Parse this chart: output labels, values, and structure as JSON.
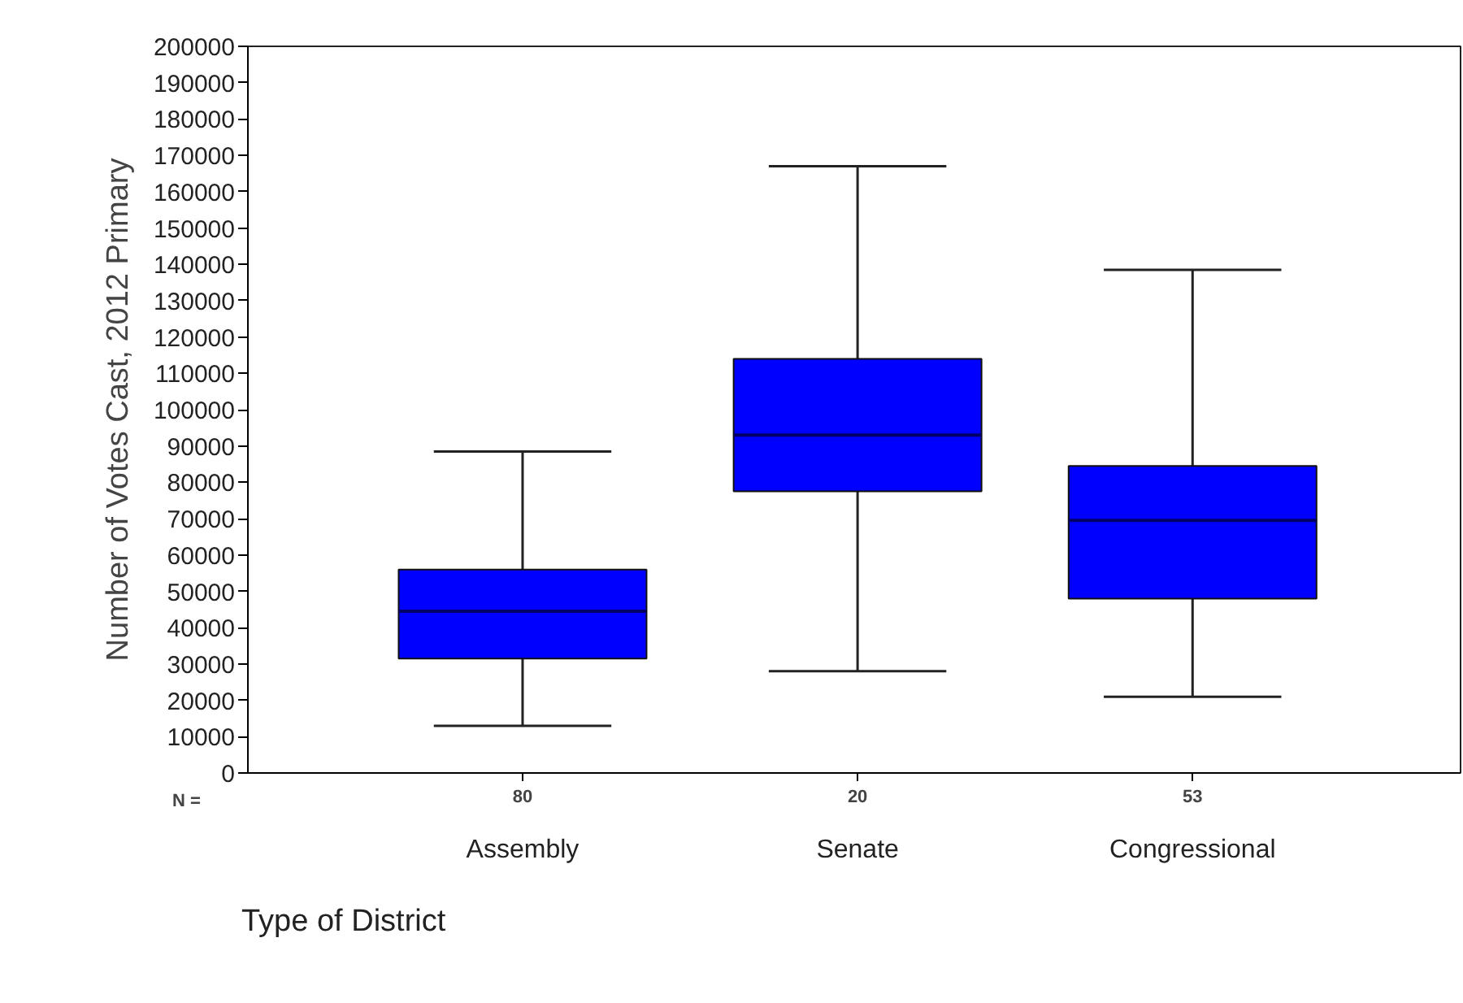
{
  "chart_data": {
    "type": "box",
    "ylabel": "Number of Votes Cast, 2012 Primary",
    "xlabel": "Type of District",
    "categories": [
      "Assembly",
      "Senate",
      "Congressional"
    ],
    "series": [
      {
        "color": "#0000ff",
        "boxes": [
          {
            "low": 13000,
            "q1": 31500,
            "median": 44500,
            "q3": 56000,
            "high": 88500
          },
          {
            "low": 28000,
            "q1": 77500,
            "median": 93000,
            "q3": 114000,
            "high": 167000
          },
          {
            "low": 21000,
            "q1": 48000,
            "median": 69500,
            "q3": 84500,
            "high": 138500
          }
        ]
      }
    ],
    "ylim": [
      0,
      200000
    ],
    "yticks": [
      0,
      10000,
      20000,
      30000,
      40000,
      50000,
      60000,
      70000,
      80000,
      90000,
      100000,
      110000,
      120000,
      130000,
      140000,
      150000,
      160000,
      170000,
      180000,
      190000,
      200000
    ],
    "annotations": [
      "N =",
      "80",
      "20",
      "53"
    ],
    "grid": false
  }
}
